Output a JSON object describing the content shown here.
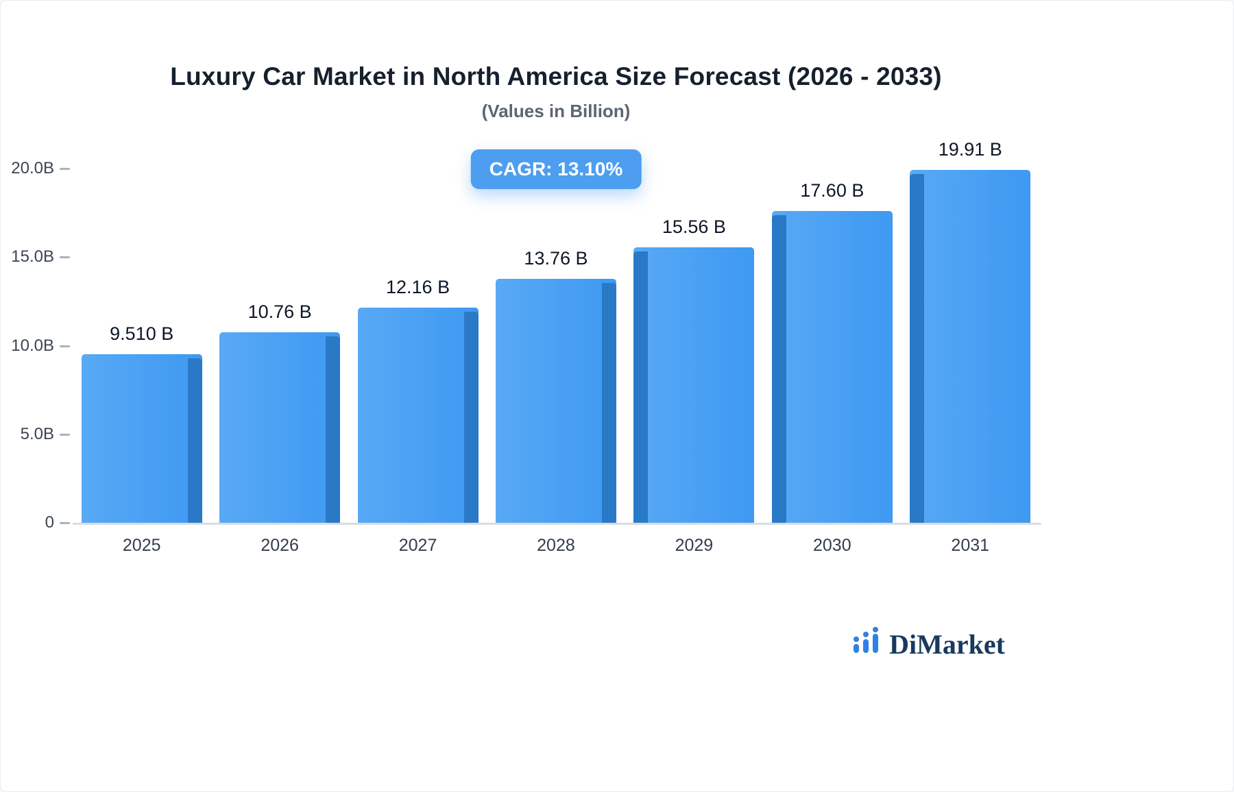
{
  "header": {
    "title": "Luxury Car Market in North America Size Forecast (2026 - 2033)",
    "subtitle": "(Values in Billion)"
  },
  "badge": {
    "label": "CAGR: 13.10%"
  },
  "brand": {
    "name": "DiMarket",
    "icon": "bar-chart-logo-icon"
  },
  "colors": {
    "bar_face_light": "#58a9f5",
    "bar_face": "#3e99f2",
    "bar_side": "#2a79c6",
    "badge_bg": "#4d9ef0",
    "brand_navy": "#173a5e",
    "brand_blue": "#2f80e4"
  },
  "chart_data": {
    "type": "bar",
    "title": "Luxury Car Market in North America Size Forecast (2026 - 2033)",
    "subtitle": "(Values in Billion)",
    "categories": [
      "2025",
      "2026",
      "2027",
      "2028",
      "2029",
      "2030",
      "2031"
    ],
    "values": [
      9.51,
      10.76,
      12.16,
      13.76,
      15.56,
      17.6,
      19.91
    ],
    "value_labels": [
      "9.510 B",
      "10.76 B",
      "12.16 B",
      "13.76 B",
      "15.56 B",
      "17.60 B",
      "19.91 B"
    ],
    "xlabel": "",
    "ylabel": "",
    "ylim": [
      0,
      20
    ],
    "grid": false,
    "legend": "none",
    "y_ticks": [
      {
        "label": "20.0B",
        "value": 20.0
      },
      {
        "label": "15.0B",
        "value": 15.0
      },
      {
        "label": "10.0B",
        "value": 10.0
      },
      {
        "label": "5.0B",
        "value": 5.0
      },
      {
        "label": "0",
        "value": 0
      }
    ],
    "annotation": "CAGR: 13.10%"
  }
}
